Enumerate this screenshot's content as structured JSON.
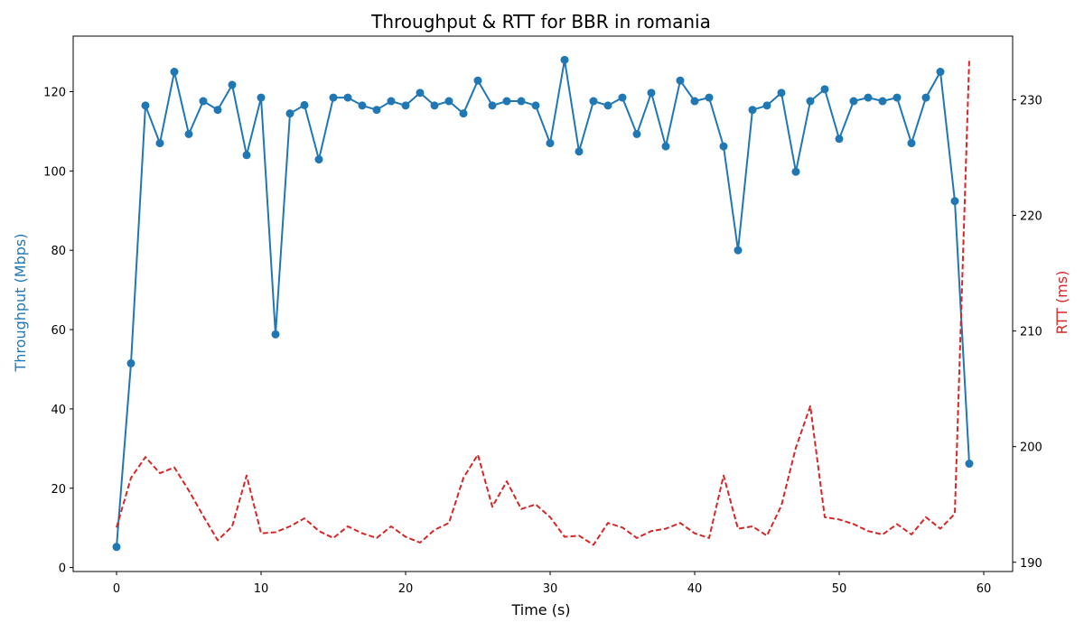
{
  "chart_data": {
    "type": "line",
    "title": "Throughput & RTT for BBR in romania",
    "xlabel": "Time (s)",
    "ylabel_left": "Throughput (Mbps)",
    "ylabel_right": "RTT (ms)",
    "xlim": [
      -3,
      62
    ],
    "ylim_left": [
      -1,
      134
    ],
    "ylim_right": [
      189.2,
      235.5
    ],
    "x_ticks": [
      0,
      10,
      20,
      30,
      40,
      50,
      60
    ],
    "y_left_ticks": [
      0,
      20,
      40,
      60,
      80,
      100,
      120
    ],
    "y_right_ticks": [
      190,
      200,
      210,
      220,
      230
    ],
    "grid": false,
    "colors": {
      "throughput": "#1f77b4",
      "rtt": "#d62728"
    },
    "series": [
      {
        "axis": "left",
        "style": "solid-with-markers",
        "x": [
          0,
          1,
          2,
          3,
          4,
          5,
          6,
          7,
          8,
          9,
          10,
          11,
          12,
          13,
          14,
          15,
          16,
          17,
          18,
          19,
          20,
          21,
          22,
          23,
          24,
          25,
          26,
          27,
          28,
          29,
          30,
          31,
          32,
          33,
          34,
          35,
          36,
          37,
          38,
          39,
          40,
          41,
          42,
          43,
          44,
          45,
          46,
          47,
          48,
          49,
          50,
          51,
          52,
          53,
          54,
          55,
          56,
          57,
          58,
          59
        ],
        "values": [
          5.2,
          51.5,
          116.5,
          107,
          125,
          109.3,
          117.6,
          115.4,
          121.7,
          104,
          118.5,
          58.8,
          114.5,
          116.6,
          102.9,
          118.5,
          118.5,
          116.5,
          115.4,
          117.6,
          116.5,
          119.7,
          116.5,
          117.6,
          114.5,
          122.8,
          116.5,
          117.6,
          117.6,
          116.5,
          107,
          128,
          104.9,
          117.6,
          116.5,
          118.5,
          109.3,
          119.7,
          106.2,
          122.8,
          117.6,
          118.5,
          106.2,
          80,
          115.4,
          116.5,
          119.7,
          99.8,
          117.6,
          120.6,
          108.1,
          117.6,
          118.5,
          117.6,
          118.5,
          107,
          118.5,
          125,
          92.4,
          26.2
        ]
      },
      {
        "axis": "right",
        "style": "dashed",
        "x": [
          0,
          1,
          2,
          3,
          4,
          5,
          6,
          7,
          8,
          9,
          10,
          11,
          12,
          13,
          14,
          15,
          16,
          17,
          18,
          19,
          20,
          21,
          22,
          23,
          24,
          25,
          26,
          27,
          28,
          29,
          30,
          31,
          32,
          33,
          34,
          35,
          36,
          37,
          38,
          39,
          40,
          41,
          42,
          43,
          44,
          45,
          46,
          47,
          48,
          49,
          50,
          51,
          52,
          53,
          54,
          55,
          56,
          57,
          58,
          59
        ],
        "values": [
          193,
          197.3,
          199.1,
          197.7,
          198.2,
          196.2,
          194,
          191.9,
          193.1,
          197.5,
          192.5,
          192.6,
          193.1,
          193.8,
          192.7,
          192.1,
          193.1,
          192.5,
          192.1,
          193.1,
          192.2,
          191.7,
          192.8,
          193.4,
          197.3,
          199.3,
          194.8,
          197,
          194.6,
          195,
          193.9,
          192.2,
          192.3,
          191.5,
          193.4,
          193,
          192.1,
          192.7,
          192.9,
          193.4,
          192.5,
          192.1,
          197.5,
          192.9,
          193.1,
          192.3,
          194.9,
          199.9,
          203.5,
          193.9,
          193.7,
          193.3,
          192.7,
          192.4,
          193.3,
          192.4,
          193.9,
          192.9,
          194.2,
          233.6
        ]
      }
    ]
  }
}
